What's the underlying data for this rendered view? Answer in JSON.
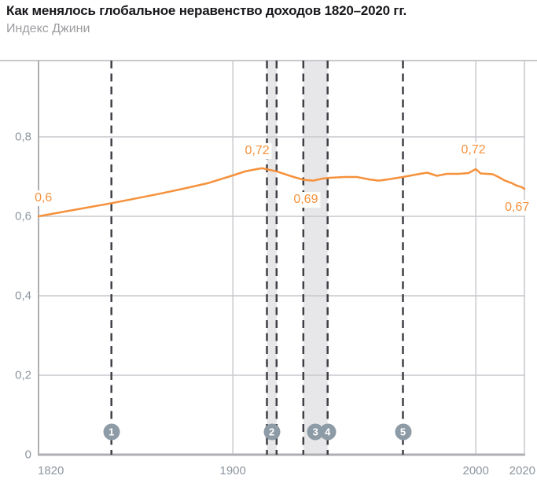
{
  "chart_data": {
    "type": "line",
    "title": "Как менялось глобальное неравенство доходов 1820–2020 гг.",
    "subtitle": "Индекс Джини",
    "xlabel": "",
    "ylabel": "Индекс Джини",
    "xlim": [
      1820,
      2020
    ],
    "ylim": [
      0,
      0.99
    ],
    "grid": true,
    "legend": "none",
    "x_ticks": [
      1820,
      1900,
      2000,
      2020
    ],
    "y_ticks": [
      {
        "value": 0,
        "label": "0"
      },
      {
        "value": 0.2,
        "label": "0,2"
      },
      {
        "value": 0.4,
        "label": "0,4"
      },
      {
        "value": 0.6,
        "label": "0,6"
      },
      {
        "value": 0.8,
        "label": "0,8"
      }
    ],
    "series": [
      {
        "name": "Индекс Джини",
        "points": [
          [
            1820,
            0.6
          ],
          [
            1830,
            0.611
          ],
          [
            1840,
            0.622
          ],
          [
            1850,
            0.633
          ],
          [
            1860,
            0.645
          ],
          [
            1870,
            0.657
          ],
          [
            1880,
            0.67
          ],
          [
            1890,
            0.684
          ],
          [
            1900,
            0.703
          ],
          [
            1905,
            0.713
          ],
          [
            1910,
            0.719
          ],
          [
            1912,
            0.721
          ],
          [
            1918,
            0.713
          ],
          [
            1924,
            0.701
          ],
          [
            1929,
            0.692
          ],
          [
            1933,
            0.69
          ],
          [
            1937,
            0.695
          ],
          [
            1940,
            0.697
          ],
          [
            1946,
            0.699
          ],
          [
            1951,
            0.699
          ],
          [
            1956,
            0.693
          ],
          [
            1960,
            0.69
          ],
          [
            1964,
            0.693
          ],
          [
            1970,
            0.699
          ],
          [
            1977,
            0.707
          ],
          [
            1980,
            0.71
          ],
          [
            1984,
            0.702
          ],
          [
            1988,
            0.707
          ],
          [
            1993,
            0.707
          ],
          [
            1997,
            0.709
          ],
          [
            2000,
            0.719
          ],
          [
            2002,
            0.708
          ],
          [
            2007,
            0.706
          ],
          [
            2009,
            0.7
          ],
          [
            2012,
            0.69
          ],
          [
            2015,
            0.683
          ],
          [
            2017,
            0.677
          ],
          [
            2019,
            0.673
          ],
          [
            2020,
            0.669
          ]
        ]
      }
    ],
    "point_labels": [
      {
        "text": "0,6",
        "year": 1822,
        "value": 0.646
      },
      {
        "text": "0,72",
        "year": 1910,
        "value": 0.764
      },
      {
        "text": "0,69",
        "year": 1930,
        "value": 0.642
      },
      {
        "text": "0,72",
        "year": 1999,
        "value": 0.766
      },
      {
        "text": "0,67",
        "year": 2017,
        "value": 0.622
      }
    ],
    "highlight_bands": [
      {
        "from": 1914,
        "to": 1918
      },
      {
        "from": 1929,
        "to": 1939
      }
    ],
    "event_dashed_lines_years": [
      1850,
      1914,
      1918,
      1929,
      1939,
      1970
    ],
    "numbered_markers": [
      {
        "label": "1",
        "year": 1850
      },
      {
        "label": "2",
        "year": 1916
      },
      {
        "label": "3",
        "year": 1934
      },
      {
        "label": "4",
        "year": 1939
      },
      {
        "label": "5",
        "year": 1970
      }
    ]
  },
  "colors": {
    "line": "#F6913C",
    "value_label": "#F6913C",
    "grid": "#C9C9CD",
    "axis": "#AFAFB3",
    "dashed_event_line": "#3F4147",
    "highlight_band": "#E7E7E9",
    "marker_circle": "#8D9BA6",
    "marker_number": "#FFFFFF",
    "tick_label": "#8D959E",
    "title": "#17171C",
    "subtitle": "#9C9CA0",
    "background": "#FFFFFF"
  }
}
